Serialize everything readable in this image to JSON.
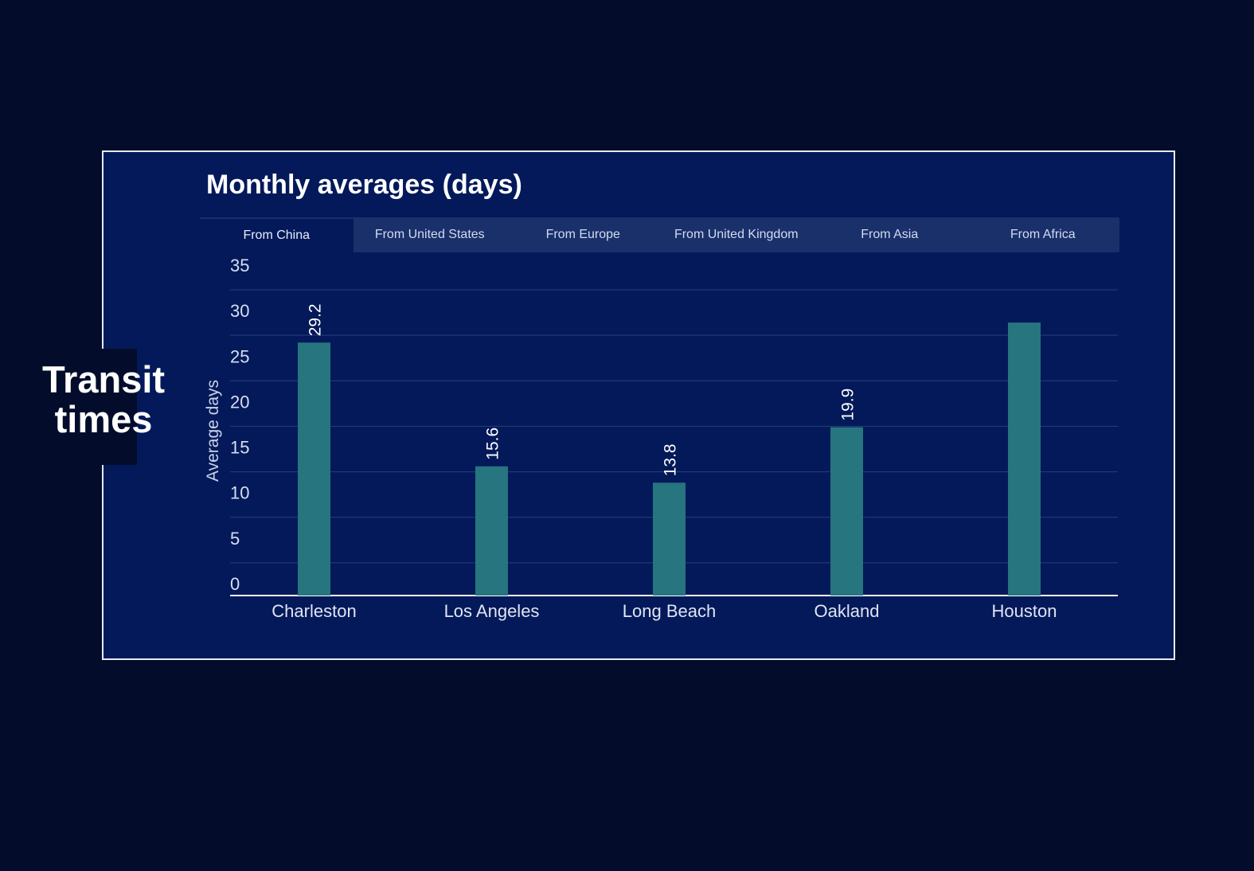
{
  "side_title": {
    "line1": "Transit",
    "line2": "times"
  },
  "panel": {
    "title": "Monthly averages (days)"
  },
  "tabs": [
    {
      "label": "From China",
      "active": true
    },
    {
      "label": "From United States",
      "active": false
    },
    {
      "label": "From Europe",
      "active": false
    },
    {
      "label": "From United Kingdom",
      "active": false
    },
    {
      "label": "From Asia",
      "active": false
    },
    {
      "label": "From Africa",
      "active": false
    }
  ],
  "colors": {
    "bar": "#26757f",
    "grid": "#2a3f7a",
    "axis": "#ffffff",
    "panel_bg": "#03195a",
    "page_bg": "#030d2b"
  },
  "chart_data": {
    "type": "bar",
    "categories": [
      "Charleston",
      "Los Angeles",
      "Long Beach",
      "Oakland",
      "Houston"
    ],
    "values": [
      29.2,
      15.6,
      13.8,
      19.9,
      31.4
    ],
    "data_labels": [
      "29.2",
      "15.6",
      "13.8",
      "19.9",
      ""
    ],
    "ylabel": "Average days",
    "ylim": [
      0,
      35
    ],
    "yticks": [
      0,
      5,
      10,
      15,
      20,
      25,
      30,
      35
    ],
    "grid": true
  }
}
